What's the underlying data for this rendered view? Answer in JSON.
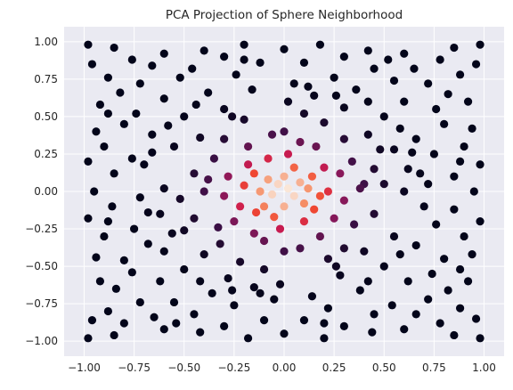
{
  "chart_data": {
    "type": "scatter",
    "title": "PCA Projection of Sphere Neighborhood",
    "xlabel": "",
    "ylabel": "",
    "xlim": [
      -1.1,
      1.1
    ],
    "ylim": [
      -1.1,
      1.1
    ],
    "x_ticks": [
      -1.0,
      -0.75,
      -0.5,
      -0.25,
      0.0,
      0.25,
      0.5,
      0.75,
      1.0
    ],
    "x_tick_labels": [
      "−1.00",
      "−0.75",
      "−0.50",
      "−0.25",
      "0.00",
      "0.25",
      "0.50",
      "0.75",
      "1.00"
    ],
    "y_ticks": [
      -1.0,
      -0.75,
      -0.5,
      -0.25,
      0.0,
      0.25,
      0.5,
      0.75,
      1.0
    ],
    "y_tick_labels": [
      "−1.00",
      "−0.75",
      "−0.50",
      "−0.25",
      "0.00",
      "0.25",
      "0.50",
      "0.75",
      "1.00"
    ],
    "grid": true,
    "colormap": "rocket",
    "color_encoding": "radial distance from origin (light at center, dark at edge)",
    "background_color": "#eaeaf2",
    "grid_color": "#ffffff",
    "series": [
      {
        "points": [
          [
            0.02,
            0.02
          ],
          [
            -0.03,
            0.05
          ],
          [
            0.05,
            -0.03
          ],
          [
            -0.06,
            -0.02
          ],
          [
            0.08,
            0.06
          ],
          [
            -0.08,
            0.08
          ],
          [
            0.1,
            -0.08
          ],
          [
            -0.1,
            -0.1
          ],
          [
            0.0,
            0.1
          ],
          [
            0.0,
            -0.1
          ],
          [
            0.12,
            0.02
          ],
          [
            -0.12,
            0.0
          ],
          [
            0.14,
            0.1
          ],
          [
            -0.15,
            0.12
          ],
          [
            0.15,
            -0.12
          ],
          [
            -0.14,
            -0.14
          ],
          [
            0.05,
            0.16
          ],
          [
            -0.05,
            -0.17
          ],
          [
            0.18,
            -0.03
          ],
          [
            -0.2,
            0.04
          ],
          [
            -0.22,
            -0.1
          ],
          [
            0.2,
            0.16
          ],
          [
            -0.18,
            0.18
          ],
          [
            0.1,
            -0.2
          ],
          [
            -0.08,
            0.22
          ],
          [
            0.22,
            0.0
          ],
          [
            -0.25,
            -0.2
          ],
          [
            0.25,
            -0.18
          ],
          [
            0.02,
            0.25
          ],
          [
            -0.02,
            -0.25
          ],
          [
            -0.28,
            0.1
          ],
          [
            0.28,
            0.12
          ],
          [
            -0.3,
            -0.03
          ],
          [
            0.3,
            -0.06
          ],
          [
            -0.15,
            -0.28
          ],
          [
            0.16,
            0.3
          ],
          [
            -0.18,
            0.3
          ],
          [
            0.18,
            -0.3
          ],
          [
            0.08,
            0.33
          ],
          [
            -0.1,
            -0.33
          ],
          [
            0.34,
            0.2
          ],
          [
            -0.35,
            0.22
          ],
          [
            0.35,
            -0.22
          ],
          [
            -0.33,
            -0.24
          ],
          [
            0.38,
            0.02
          ],
          [
            -0.4,
            0.0
          ],
          [
            0.0,
            0.4
          ],
          [
            0.0,
            -0.4
          ],
          [
            0.3,
            0.35
          ],
          [
            -0.3,
            0.35
          ],
          [
            0.3,
            -0.38
          ],
          [
            -0.32,
            -0.35
          ],
          [
            0.45,
            0.15
          ],
          [
            -0.45,
            0.12
          ],
          [
            0.45,
            -0.15
          ],
          [
            -0.45,
            -0.18
          ],
          [
            0.2,
            0.46
          ],
          [
            -0.2,
            0.48
          ],
          [
            0.22,
            -0.45
          ],
          [
            -0.22,
            -0.47
          ],
          [
            0.5,
            0.05
          ],
          [
            -0.52,
            -0.05
          ],
          [
            0.1,
            0.52
          ],
          [
            -0.1,
            -0.52
          ],
          [
            0.42,
            0.38
          ],
          [
            -0.42,
            0.36
          ],
          [
            0.4,
            -0.4
          ],
          [
            -0.4,
            -0.42
          ],
          [
            0.55,
            0.28
          ],
          [
            -0.55,
            0.3
          ],
          [
            0.55,
            -0.3
          ],
          [
            -0.56,
            -0.28
          ],
          [
            0.3,
            0.56
          ],
          [
            -0.3,
            0.55
          ],
          [
            0.28,
            -0.56
          ],
          [
            -0.28,
            -0.58
          ],
          [
            0.6,
            0.0
          ],
          [
            -0.6,
            0.02
          ],
          [
            0.02,
            0.6
          ],
          [
            -0.02,
            -0.62
          ],
          [
            0.62,
            0.15
          ],
          [
            -0.62,
            -0.15
          ],
          [
            0.15,
            0.64
          ],
          [
            -0.15,
            -0.64
          ],
          [
            0.5,
            0.5
          ],
          [
            -0.5,
            0.5
          ],
          [
            0.5,
            -0.5
          ],
          [
            -0.5,
            -0.52
          ],
          [
            0.66,
            0.35
          ],
          [
            -0.66,
            0.38
          ],
          [
            0.66,
            -0.36
          ],
          [
            -0.68,
            -0.35
          ],
          [
            0.36,
            0.68
          ],
          [
            -0.38,
            0.66
          ],
          [
            0.38,
            -0.66
          ],
          [
            -0.36,
            -0.68
          ],
          [
            0.72,
            0.05
          ],
          [
            -0.72,
            -0.04
          ],
          [
            0.05,
            0.72
          ],
          [
            -0.05,
            -0.72
          ],
          [
            0.6,
            0.6
          ],
          [
            -0.6,
            0.62
          ],
          [
            0.62,
            -0.6
          ],
          [
            -0.62,
            -0.6
          ],
          [
            0.75,
            0.25
          ],
          [
            -0.76,
            0.22
          ],
          [
            0.76,
            -0.22
          ],
          [
            -0.75,
            -0.25
          ],
          [
            0.25,
            0.76
          ],
          [
            -0.24,
            0.78
          ],
          [
            0.22,
            -0.78
          ],
          [
            -0.25,
            -0.76
          ],
          [
            0.8,
            0.45
          ],
          [
            -0.8,
            0.45
          ],
          [
            0.8,
            -0.45
          ],
          [
            -0.8,
            -0.46
          ],
          [
            0.45,
            0.82
          ],
          [
            -0.46,
            0.82
          ],
          [
            0.45,
            -0.82
          ],
          [
            -0.45,
            -0.82
          ],
          [
            0.85,
            0.1
          ],
          [
            -0.85,
            0.12
          ],
          [
            0.85,
            -0.12
          ],
          [
            -0.86,
            -0.1
          ],
          [
            0.1,
            0.86
          ],
          [
            -0.12,
            0.86
          ],
          [
            0.1,
            -0.86
          ],
          [
            -0.1,
            -0.86
          ],
          [
            0.72,
            0.72
          ],
          [
            -0.72,
            0.72
          ],
          [
            0.72,
            -0.72
          ],
          [
            -0.72,
            -0.74
          ],
          [
            0.9,
            0.3
          ],
          [
            -0.9,
            0.3
          ],
          [
            0.9,
            -0.3
          ],
          [
            -0.9,
            -0.3
          ],
          [
            0.3,
            0.9
          ],
          [
            -0.3,
            0.9
          ],
          [
            0.3,
            -0.9
          ],
          [
            -0.3,
            -0.9
          ],
          [
            0.92,
            0.6
          ],
          [
            -0.92,
            0.58
          ],
          [
            0.92,
            -0.6
          ],
          [
            -0.92,
            -0.6
          ],
          [
            0.6,
            0.92
          ],
          [
            -0.6,
            0.92
          ],
          [
            0.6,
            -0.92
          ],
          [
            -0.6,
            -0.92
          ],
          [
            0.95,
            0.0
          ],
          [
            -0.95,
            0.0
          ],
          [
            0.0,
            0.95
          ],
          [
            0.0,
            -0.95
          ],
          [
            0.96,
            0.85
          ],
          [
            -0.96,
            0.85
          ],
          [
            0.96,
            -0.85
          ],
          [
            -0.96,
            -0.86
          ],
          [
            0.85,
            0.96
          ],
          [
            -0.85,
            0.96
          ],
          [
            0.85,
            -0.96
          ],
          [
            -0.85,
            -0.96
          ],
          [
            0.98,
            0.18
          ],
          [
            -0.98,
            0.2
          ],
          [
            0.98,
            -0.2
          ],
          [
            -0.98,
            -0.18
          ],
          [
            0.18,
            0.98
          ],
          [
            -0.2,
            0.98
          ],
          [
            0.2,
            -0.98
          ],
          [
            -0.18,
            -0.98
          ],
          [
            0.98,
            0.98
          ],
          [
            -0.98,
            0.98
          ],
          [
            0.98,
            -0.98
          ],
          [
            -0.98,
            -0.98
          ],
          [
            0.68,
            0.12
          ],
          [
            -0.7,
            0.18
          ],
          [
            0.7,
            -0.1
          ],
          [
            -0.68,
            -0.14
          ],
          [
            0.12,
            0.7
          ],
          [
            -0.16,
            0.68
          ],
          [
            0.14,
            -0.7
          ],
          [
            -0.12,
            -0.68
          ],
          [
            0.82,
            0.65
          ],
          [
            -0.82,
            0.66
          ],
          [
            0.82,
            -0.66
          ],
          [
            -0.84,
            -0.65
          ],
          [
            0.65,
            0.82
          ],
          [
            -0.66,
            0.84
          ],
          [
            0.66,
            -0.82
          ],
          [
            -0.65,
            -0.84
          ],
          [
            0.4,
            0.05
          ],
          [
            -0.38,
            0.08
          ],
          [
            0.08,
            -0.38
          ],
          [
            -0.06,
            0.38
          ],
          [
            0.58,
            0.42
          ],
          [
            -0.58,
            0.44
          ],
          [
            0.58,
            -0.42
          ],
          [
            -0.6,
            -0.4
          ],
          [
            0.42,
            0.6
          ],
          [
            -0.44,
            0.58
          ],
          [
            0.42,
            -0.6
          ],
          [
            -0.42,
            -0.6
          ],
          [
            0.88,
            0.78
          ],
          [
            -0.88,
            0.76
          ],
          [
            0.88,
            -0.78
          ],
          [
            -0.88,
            -0.8
          ],
          [
            0.78,
            0.88
          ],
          [
            -0.76,
            0.88
          ],
          [
            0.78,
            -0.88
          ],
          [
            -0.8,
            -0.88
          ],
          [
            0.48,
            0.28
          ],
          [
            -0.5,
            -0.26
          ],
          [
            0.26,
            -0.5
          ],
          [
            -0.26,
            0.5
          ],
          [
            0.94,
            0.42
          ],
          [
            -0.94,
            0.4
          ],
          [
            0.94,
            -0.42
          ],
          [
            -0.94,
            -0.44
          ],
          [
            0.42,
            0.94
          ],
          [
            -0.4,
            0.94
          ],
          [
            0.44,
            -0.94
          ],
          [
            -0.42,
            -0.94
          ],
          [
            0.76,
            0.55
          ],
          [
            -0.74,
            0.52
          ],
          [
            0.74,
            -0.55
          ],
          [
            -0.76,
            -0.54
          ],
          [
            0.55,
            0.74
          ],
          [
            -0.52,
            0.76
          ],
          [
            0.54,
            -0.76
          ],
          [
            -0.55,
            -0.74
          ],
          [
            0.64,
            0.26
          ],
          [
            -0.66,
            0.26
          ],
          [
            0.26,
            0.64
          ],
          [
            -0.26,
            -0.66
          ],
          [
            0.88,
            0.2
          ],
          [
            -0.88,
            -0.2
          ],
          [
            0.2,
            -0.88
          ],
          [
            -0.2,
            0.88
          ],
          [
            0.52,
            0.88
          ],
          [
            -0.54,
            -0.88
          ],
          [
            0.88,
            -0.52
          ],
          [
            -0.88,
            0.52
          ]
        ]
      }
    ]
  }
}
